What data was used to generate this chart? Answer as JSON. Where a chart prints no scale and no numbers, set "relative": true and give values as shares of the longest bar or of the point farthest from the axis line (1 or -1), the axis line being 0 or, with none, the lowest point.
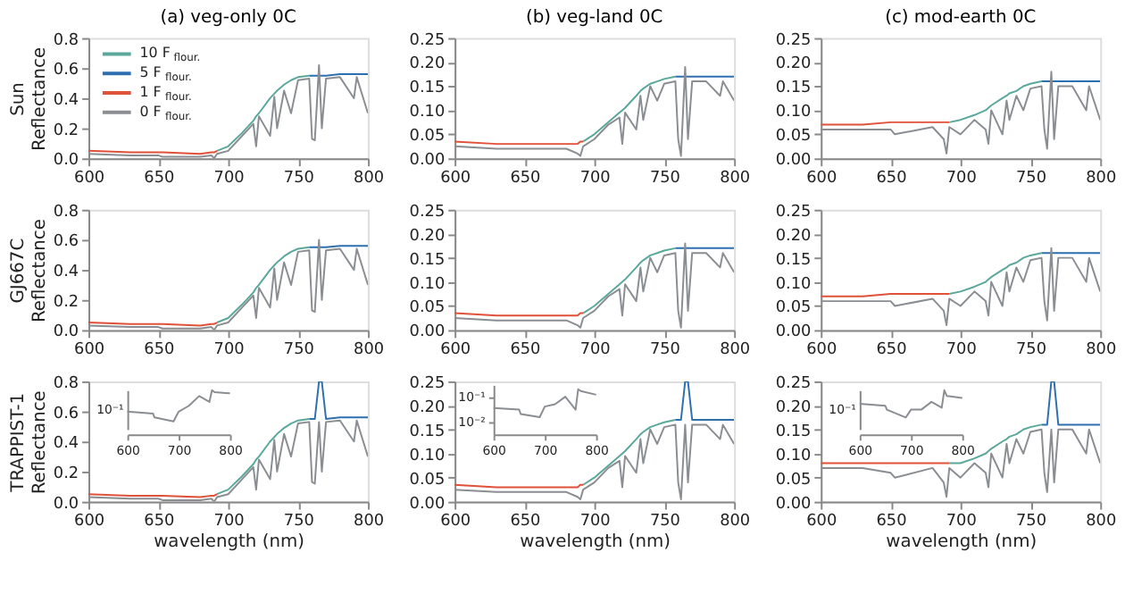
{
  "chart_data": [
    {
      "type": "line",
      "title": "(a) veg-only 0C",
      "ylabel": "Sun Reflectance",
      "legend": "top left",
      "xlim": [
        600,
        800
      ],
      "xticks": [
        600,
        650,
        700,
        750,
        800
      ],
      "ylim": [
        0,
        0.8
      ],
      "yticks": [
        {
          "value": 0,
          "label": "0.0"
        },
        0.2,
        0.4,
        0.6,
        0.8
      ],
      "x": [
        600,
        630,
        650,
        653,
        680,
        688,
        690,
        692,
        700,
        710,
        718,
        720,
        722,
        730,
        733,
        735,
        740,
        745,
        750,
        758,
        760,
        762,
        765,
        767,
        770,
        780,
        790,
        792,
        800
      ],
      "series": [
        {
          "name": "10 F$_{flour.}$",
          "color": "#5aa89a",
          "values": [
            null,
            null,
            null,
            null,
            null,
            null,
            null,
            0.05,
            0.08,
            0.17,
            0.25,
            0.28,
            0.3,
            0.4,
            0.43,
            0.45,
            0.49,
            0.52,
            0.54,
            0.55,
            null,
            null,
            null,
            null,
            null,
            null,
            null,
            null,
            null
          ]
        },
        {
          "name": "5 F$_{flour.}$",
          "color": "#2e6fb0",
          "values": [
            null,
            null,
            null,
            null,
            null,
            null,
            null,
            null,
            null,
            null,
            null,
            null,
            null,
            null,
            null,
            null,
            null,
            null,
            null,
            0.55,
            0.55,
            0.55,
            0.55,
            0.55,
            0.55,
            0.56,
            0.56,
            0.56,
            0.56
          ]
        },
        {
          "name": "1 F$_{flour.}$",
          "color": "#e0513a",
          "values": [
            0.05,
            0.04,
            0.04,
            0.04,
            0.03,
            0.04,
            0.04,
            0.05,
            null,
            null,
            null,
            null,
            null,
            null,
            null,
            null,
            null,
            null,
            null,
            null,
            null,
            null,
            null,
            null,
            null,
            null,
            null,
            null,
            null
          ]
        },
        {
          "name": "0 F$_{flour.}$",
          "color": "#8a8d91",
          "values": [
            0.03,
            0.02,
            0.02,
            0.01,
            0.01,
            0.02,
            0,
            0.03,
            0.05,
            0.15,
            0.23,
            0.08,
            0.28,
            0.15,
            0.41,
            0.2,
            0.45,
            0.3,
            0.52,
            0.53,
            0.13,
            0.12,
            0.62,
            0.2,
            0.53,
            0.54,
            0.4,
            0.54,
            0.3
          ]
        }
      ]
    },
    {
      "type": "line",
      "title": "(b) veg-land 0C",
      "xlim": [
        600,
        800
      ],
      "xticks": [
        600,
        650,
        700,
        750,
        800
      ],
      "ylim": [
        0,
        0.25
      ],
      "yticks": [
        {
          "value": 0,
          "label": "0.00"
        },
        0.05,
        {
          "value": 0.1,
          "label": "0.10"
        },
        0.15,
        {
          "value": 0.2,
          "label": "0.20"
        },
        0.25
      ],
      "x": [
        600,
        630,
        650,
        653,
        680,
        688,
        690,
        692,
        700,
        710,
        718,
        720,
        722,
        730,
        733,
        735,
        740,
        745,
        750,
        758,
        760,
        762,
        765,
        767,
        770,
        780,
        790,
        792,
        800
      ],
      "series": [
        {
          "color": "#5aa89a",
          "values": [
            null,
            null,
            null,
            null,
            null,
            null,
            null,
            0.035,
            0.05,
            0.075,
            0.095,
            0.1,
            0.105,
            0.13,
            0.14,
            0.145,
            0.155,
            0.16,
            0.165,
            0.17,
            null,
            null,
            null,
            null,
            null,
            null,
            null,
            null,
            null
          ]
        },
        {
          "color": "#2e6fb0",
          "values": [
            null,
            null,
            null,
            null,
            null,
            null,
            null,
            null,
            null,
            null,
            null,
            null,
            null,
            null,
            null,
            null,
            null,
            null,
            null,
            0.17,
            0.17,
            0.17,
            0.17,
            0.17,
            0.17,
            0.17,
            0.17,
            0.17,
            0.17
          ]
        },
        {
          "color": "#e0513a",
          "values": [
            0.035,
            0.03,
            0.03,
            0.03,
            0.03,
            0.03,
            0.035,
            0.035,
            null,
            null,
            null,
            null,
            null,
            null,
            null,
            null,
            null,
            null,
            null,
            null,
            null,
            null,
            null,
            null,
            null,
            null,
            null,
            null,
            null
          ]
        },
        {
          "color": "#8a8d91",
          "values": [
            0.025,
            0.02,
            0.02,
            0.02,
            0.02,
            0.01,
            0.005,
            0.025,
            0.04,
            0.07,
            0.085,
            0.03,
            0.095,
            0.06,
            0.13,
            0.08,
            0.15,
            0.12,
            0.155,
            0.16,
            0.04,
            0.005,
            0.19,
            0.04,
            0.16,
            0.16,
            0.13,
            0.16,
            0.12
          ]
        }
      ]
    },
    {
      "type": "line",
      "title": "(c) mod-earth 0C",
      "xlim": [
        600,
        800
      ],
      "xticks": [
        600,
        650,
        700,
        750,
        800
      ],
      "ylim": [
        0,
        0.25
      ],
      "yticks": [
        {
          "value": 0,
          "label": "0.00"
        },
        0.05,
        {
          "value": 0.1,
          "label": "0.10"
        },
        0.15,
        {
          "value": 0.2,
          "label": "0.20"
        },
        0.25
      ],
      "x": [
        600,
        630,
        650,
        653,
        680,
        688,
        690,
        692,
        700,
        710,
        718,
        720,
        722,
        730,
        733,
        735,
        740,
        745,
        750,
        758,
        760,
        762,
        765,
        767,
        770,
        780,
        790,
        792,
        800
      ],
      "series": [
        {
          "color": "#5aa89a",
          "values": [
            null,
            null,
            null,
            null,
            null,
            null,
            null,
            0.075,
            0.08,
            0.09,
            0.1,
            0.105,
            0.11,
            0.125,
            0.13,
            0.135,
            0.14,
            0.15,
            0.155,
            0.16,
            null,
            null,
            null,
            null,
            null,
            null,
            null,
            null,
            null
          ]
        },
        {
          "color": "#2e6fb0",
          "values": [
            null,
            null,
            null,
            null,
            null,
            null,
            null,
            null,
            null,
            null,
            null,
            null,
            null,
            null,
            null,
            null,
            null,
            null,
            null,
            0.16,
            0.16,
            0.16,
            0.16,
            0.16,
            0.16,
            0.16,
            0.16,
            0.16,
            0.16
          ]
        },
        {
          "color": "#e0513a",
          "values": [
            0.07,
            0.07,
            0.075,
            0.075,
            0.075,
            0.075,
            0.075,
            0.075,
            null,
            null,
            null,
            null,
            null,
            null,
            null,
            null,
            null,
            null,
            null,
            null,
            null,
            null,
            null,
            null,
            null,
            null,
            null,
            null,
            null
          ]
        },
        {
          "color": "#8a8d91",
          "values": [
            0.06,
            0.06,
            0.06,
            0.05,
            0.065,
            0.04,
            0.01,
            0.065,
            0.05,
            0.08,
            0.06,
            0.03,
            0.1,
            0.05,
            0.12,
            0.08,
            0.13,
            0.1,
            0.145,
            0.15,
            0.06,
            0.02,
            0.18,
            0.04,
            0.15,
            0.15,
            0.1,
            0.15,
            0.08
          ]
        }
      ]
    },
    {
      "type": "line",
      "ylabel": "GJ667C Reflectance",
      "xlim": [
        600,
        800
      ],
      "xticks": [
        600,
        650,
        700,
        750,
        800
      ],
      "ylim": [
        0,
        0.8
      ],
      "yticks": [
        {
          "value": 0,
          "label": "0.0"
        },
        0.2,
        0.4,
        0.6,
        0.8
      ],
      "x": [
        600,
        630,
        650,
        653,
        680,
        688,
        690,
        692,
        700,
        710,
        718,
        720,
        722,
        730,
        733,
        735,
        740,
        745,
        750,
        758,
        760,
        762,
        765,
        767,
        770,
        780,
        790,
        792,
        800
      ],
      "series": [
        {
          "color": "#5aa89a",
          "values": [
            null,
            null,
            null,
            null,
            null,
            null,
            null,
            0.05,
            0.08,
            0.17,
            0.25,
            0.28,
            0.3,
            0.4,
            0.43,
            0.45,
            0.49,
            0.52,
            0.54,
            0.55,
            null,
            null,
            null,
            null,
            null,
            null,
            null,
            null,
            null
          ]
        },
        {
          "color": "#2e6fb0",
          "values": [
            null,
            null,
            null,
            null,
            null,
            null,
            null,
            null,
            null,
            null,
            null,
            null,
            null,
            null,
            null,
            null,
            null,
            null,
            null,
            0.55,
            0.55,
            0.55,
            0.55,
            0.55,
            0.55,
            0.56,
            0.56,
            0.56,
            0.56
          ]
        },
        {
          "color": "#e0513a",
          "values": [
            0.05,
            0.04,
            0.04,
            0.04,
            0.03,
            0.04,
            0.04,
            0.05,
            null,
            null,
            null,
            null,
            null,
            null,
            null,
            null,
            null,
            null,
            null,
            null,
            null,
            null,
            null,
            null,
            null,
            null,
            null,
            null,
            null
          ]
        },
        {
          "color": "#8a8d91",
          "values": [
            0.03,
            0.02,
            0.02,
            0.01,
            0.01,
            0.02,
            0,
            0.03,
            0.05,
            0.15,
            0.23,
            0.08,
            0.28,
            0.15,
            0.41,
            0.2,
            0.45,
            0.3,
            0.52,
            0.53,
            0.13,
            0.12,
            0.6,
            0.2,
            0.53,
            0.54,
            0.4,
            0.54,
            0.3
          ]
        }
      ]
    },
    {
      "type": "line",
      "xlim": [
        600,
        800
      ],
      "xticks": [
        600,
        650,
        700,
        750,
        800
      ],
      "ylim": [
        0,
        0.25
      ],
      "yticks": [
        {
          "value": 0,
          "label": "0.00"
        },
        0.05,
        {
          "value": 0.1,
          "label": "0.10"
        },
        0.15,
        {
          "value": 0.2,
          "label": "0.20"
        },
        0.25
      ],
      "x": [
        600,
        630,
        650,
        653,
        680,
        688,
        690,
        692,
        700,
        710,
        718,
        720,
        722,
        730,
        733,
        735,
        740,
        745,
        750,
        758,
        760,
        762,
        765,
        767,
        770,
        780,
        790,
        792,
        800
      ],
      "series": [
        {
          "color": "#5aa89a",
          "values": [
            null,
            null,
            null,
            null,
            null,
            null,
            null,
            0.035,
            0.05,
            0.075,
            0.095,
            0.1,
            0.105,
            0.13,
            0.14,
            0.145,
            0.155,
            0.16,
            0.165,
            0.17,
            null,
            null,
            null,
            null,
            null,
            null,
            null,
            null,
            null
          ]
        },
        {
          "color": "#2e6fb0",
          "values": [
            null,
            null,
            null,
            null,
            null,
            null,
            null,
            null,
            null,
            null,
            null,
            null,
            null,
            null,
            null,
            null,
            null,
            null,
            null,
            0.17,
            0.17,
            0.17,
            0.17,
            0.17,
            0.17,
            0.17,
            0.17,
            0.17,
            0.17
          ]
        },
        {
          "color": "#e0513a",
          "values": [
            0.035,
            0.03,
            0.03,
            0.03,
            0.03,
            0.03,
            0.035,
            0.035,
            null,
            null,
            null,
            null,
            null,
            null,
            null,
            null,
            null,
            null,
            null,
            null,
            null,
            null,
            null,
            null,
            null,
            null,
            null,
            null,
            null
          ]
        },
        {
          "color": "#8a8d91",
          "values": [
            0.025,
            0.02,
            0.02,
            0.02,
            0.02,
            0.01,
            0.005,
            0.025,
            0.04,
            0.07,
            0.085,
            0.03,
            0.095,
            0.06,
            0.13,
            0.08,
            0.15,
            0.12,
            0.155,
            0.16,
            0.04,
            0.005,
            0.18,
            0.04,
            0.16,
            0.16,
            0.13,
            0.16,
            0.12
          ]
        }
      ]
    },
    {
      "type": "line",
      "xlim": [
        600,
        800
      ],
      "xticks": [
        600,
        650,
        700,
        750,
        800
      ],
      "ylim": [
        0,
        0.25
      ],
      "yticks": [
        {
          "value": 0,
          "label": "0.00"
        },
        0.05,
        {
          "value": 0.1,
          "label": "0.10"
        },
        0.15,
        {
          "value": 0.2,
          "label": "0.20"
        },
        0.25
      ],
      "x": [
        600,
        630,
        650,
        653,
        680,
        688,
        690,
        692,
        700,
        710,
        718,
        720,
        722,
        730,
        733,
        735,
        740,
        745,
        750,
        758,
        760,
        762,
        765,
        767,
        770,
        780,
        790,
        792,
        800
      ],
      "series": [
        {
          "color": "#5aa89a",
          "values": [
            null,
            null,
            null,
            null,
            null,
            null,
            null,
            0.075,
            0.08,
            0.09,
            0.1,
            0.105,
            0.11,
            0.125,
            0.13,
            0.135,
            0.14,
            0.15,
            0.155,
            0.16,
            null,
            null,
            null,
            null,
            null,
            null,
            null,
            null,
            null
          ]
        },
        {
          "color": "#2e6fb0",
          "values": [
            null,
            null,
            null,
            null,
            null,
            null,
            null,
            null,
            null,
            null,
            null,
            null,
            null,
            null,
            null,
            null,
            null,
            null,
            null,
            0.16,
            0.16,
            0.16,
            0.16,
            0.16,
            0.16,
            0.16,
            0.16,
            0.16,
            0.16
          ]
        },
        {
          "color": "#e0513a",
          "values": [
            0.07,
            0.07,
            0.075,
            0.075,
            0.075,
            0.075,
            0.075,
            0.075,
            null,
            null,
            null,
            null,
            null,
            null,
            null,
            null,
            null,
            null,
            null,
            null,
            null,
            null,
            null,
            null,
            null,
            null,
            null,
            null,
            null
          ]
        },
        {
          "color": "#8a8d91",
          "values": [
            0.06,
            0.06,
            0.06,
            0.05,
            0.065,
            0.04,
            0.01,
            0.065,
            0.05,
            0.08,
            0.06,
            0.03,
            0.1,
            0.05,
            0.12,
            0.08,
            0.13,
            0.1,
            0.145,
            0.15,
            0.06,
            0.02,
            0.17,
            0.04,
            0.15,
            0.15,
            0.1,
            0.15,
            0.08
          ]
        }
      ]
    },
    {
      "type": "line",
      "ylabel": "TRAPPIST-1 Reflectance",
      "xlabel": "wavelength (nm)",
      "xlim": [
        600,
        800
      ],
      "xticks": [
        600,
        650,
        700,
        750,
        800
      ],
      "ylim": [
        0,
        0.8
      ],
      "yticks": [
        {
          "value": 0,
          "label": "0.0"
        },
        0.2,
        0.4,
        0.6,
        0.8
      ],
      "x": [
        600,
        630,
        650,
        653,
        680,
        688,
        690,
        692,
        700,
        710,
        718,
        720,
        722,
        730,
        733,
        735,
        740,
        745,
        750,
        758,
        760,
        762,
        765,
        767,
        770,
        780,
        790,
        792,
        800
      ],
      "series": [
        {
          "color": "#5aa89a",
          "values": [
            null,
            null,
            null,
            null,
            null,
            null,
            null,
            0.05,
            0.08,
            0.17,
            0.25,
            0.28,
            0.3,
            0.4,
            0.43,
            0.45,
            0.49,
            0.52,
            0.54,
            0.55,
            null,
            null,
            null,
            null,
            null,
            null,
            null,
            null,
            null
          ]
        },
        {
          "color": "#2e6fb0",
          "values": [
            null,
            null,
            null,
            null,
            null,
            null,
            null,
            null,
            null,
            null,
            null,
            null,
            null,
            null,
            null,
            null,
            null,
            null,
            null,
            0.55,
            0.55,
            0.55,
            0.8,
            0.8,
            0.55,
            0.56,
            0.56,
            0.56,
            0.56
          ]
        },
        {
          "color": "#e0513a",
          "values": [
            0.05,
            0.04,
            0.04,
            0.04,
            0.03,
            0.04,
            0.04,
            0.05,
            null,
            null,
            null,
            null,
            null,
            null,
            null,
            null,
            null,
            null,
            null,
            null,
            null,
            null,
            null,
            null,
            null,
            null,
            null,
            null,
            null
          ]
        },
        {
          "color": "#8a8d91",
          "values": [
            0.03,
            0.02,
            0.02,
            0.01,
            0.01,
            0.02,
            0,
            0.03,
            0.05,
            0.15,
            0.23,
            0.08,
            0.28,
            0.15,
            0.41,
            0.2,
            0.45,
            0.3,
            0.52,
            0.53,
            0.13,
            0.12,
            0.53,
            0.2,
            0.53,
            0.54,
            0.4,
            0.54,
            0.3
          ]
        }
      ]
    },
    {
      "type": "line",
      "xlabel": "wavelength (nm)",
      "xlim": [
        600,
        800
      ],
      "xticks": [
        600,
        650,
        700,
        750,
        800
      ],
      "ylim": [
        0,
        0.25
      ],
      "yticks": [
        {
          "value": 0,
          "label": "0.00"
        },
        0.05,
        {
          "value": 0.1,
          "label": "0.10"
        },
        0.15,
        {
          "value": 0.2,
          "label": "0.20"
        },
        0.25
      ],
      "x": [
        600,
        630,
        650,
        653,
        680,
        688,
        690,
        692,
        700,
        710,
        718,
        720,
        722,
        730,
        733,
        735,
        740,
        745,
        750,
        758,
        760,
        762,
        765,
        767,
        770,
        780,
        790,
        792,
        800
      ],
      "series": [
        {
          "color": "#5aa89a",
          "values": [
            null,
            null,
            null,
            null,
            null,
            null,
            null,
            0.035,
            0.05,
            0.075,
            0.095,
            0.1,
            0.105,
            0.13,
            0.14,
            0.145,
            0.155,
            0.16,
            0.165,
            0.17,
            null,
            null,
            null,
            null,
            null,
            null,
            null,
            null,
            null
          ]
        },
        {
          "color": "#2e6fb0",
          "values": [
            null,
            null,
            null,
            null,
            null,
            null,
            null,
            null,
            null,
            null,
            null,
            null,
            null,
            null,
            null,
            null,
            null,
            null,
            null,
            0.17,
            0.17,
            0.17,
            0.25,
            0.25,
            0.17,
            0.17,
            0.17,
            0.17,
            0.17
          ]
        },
        {
          "color": "#e0513a",
          "values": [
            0.035,
            0.03,
            0.03,
            0.03,
            0.03,
            0.03,
            0.035,
            0.035,
            null,
            null,
            null,
            null,
            null,
            null,
            null,
            null,
            null,
            null,
            null,
            null,
            null,
            null,
            null,
            null,
            null,
            null,
            null,
            null,
            null
          ]
        },
        {
          "color": "#8a8d91",
          "values": [
            0.025,
            0.02,
            0.02,
            0.02,
            0.02,
            0.01,
            0.005,
            0.025,
            0.04,
            0.07,
            0.085,
            0.03,
            0.095,
            0.06,
            0.13,
            0.08,
            0.15,
            0.12,
            0.155,
            0.16,
            0.04,
            0.005,
            0.16,
            0.04,
            0.16,
            0.16,
            0.13,
            0.16,
            0.12
          ]
        }
      ]
    },
    {
      "type": "line",
      "xlabel": "wavelength (nm)",
      "xlim": [
        600,
        800
      ],
      "xticks": [
        600,
        650,
        700,
        750,
        800
      ],
      "ylim": [
        0,
        0.25
      ],
      "yticks": [
        {
          "value": 0,
          "label": "0.00"
        },
        0.05,
        {
          "value": 0.1,
          "label": "0.10"
        },
        0.15,
        {
          "value": 0.2,
          "label": "0.20"
        },
        0.25
      ],
      "x": [
        600,
        630,
        650,
        653,
        680,
        688,
        690,
        692,
        700,
        710,
        718,
        720,
        722,
        730,
        733,
        735,
        740,
        745,
        750,
        758,
        760,
        762,
        765,
        767,
        770,
        780,
        790,
        792,
        800
      ],
      "series": [
        {
          "color": "#5aa89a",
          "values": [
            null,
            null,
            null,
            null,
            null,
            null,
            null,
            0.08,
            0.08,
            0.09,
            0.1,
            0.105,
            0.11,
            0.125,
            0.13,
            0.135,
            0.14,
            0.15,
            0.155,
            0.16,
            null,
            null,
            null,
            null,
            null,
            null,
            null,
            null,
            null
          ]
        },
        {
          "color": "#2e6fb0",
          "values": [
            null,
            null,
            null,
            null,
            null,
            null,
            null,
            null,
            null,
            null,
            null,
            null,
            null,
            null,
            null,
            null,
            null,
            null,
            null,
            0.16,
            0.16,
            0.16,
            0.25,
            0.25,
            0.16,
            0.16,
            0.16,
            0.16,
            0.16
          ]
        },
        {
          "color": "#e0513a",
          "values": [
            0.08,
            0.08,
            0.08,
            0.08,
            0.08,
            0.08,
            0.08,
            0.08,
            null,
            null,
            null,
            null,
            null,
            null,
            null,
            null,
            null,
            null,
            null,
            null,
            null,
            null,
            null,
            null,
            null,
            null,
            null,
            null,
            null
          ]
        },
        {
          "color": "#8a8d91",
          "values": [
            0.07,
            0.07,
            0.06,
            0.05,
            0.07,
            0.04,
            0.01,
            0.07,
            0.05,
            0.08,
            0.06,
            0.03,
            0.1,
            0.05,
            0.12,
            0.08,
            0.13,
            0.1,
            0.145,
            0.15,
            0.06,
            0.02,
            0.15,
            0.04,
            0.15,
            0.15,
            0.1,
            0.15,
            0.08
          ]
        }
      ]
    },
    {
      "type": "line",
      "relative": true,
      "annotations": [
        "10⁻¹"
      ],
      "xlim": [
        600,
        800
      ],
      "xticks": [
        600,
        700,
        800
      ],
      "x": [
        600,
        650,
        653,
        690,
        700,
        720,
        740,
        760,
        765,
        770,
        800
      ],
      "series": [
        {
          "color": "#8a8d91",
          "values": [
            0.45,
            0.4,
            0.3,
            0.2,
            0.45,
            0.6,
            0.85,
            0.7,
            1,
            0.95,
            0.92
          ]
        }
      ]
    },
    {
      "type": "line",
      "log": "y",
      "xlim": [
        600,
        800
      ],
      "xticks": [
        600,
        700,
        800
      ],
      "ylim": [
        0.003,
        0.3
      ],
      "yticks": [
        {
          "value": 0.1,
          "label": "10⁻¹"
        },
        {
          "value": 0.01,
          "label": "10⁻²"
        }
      ],
      "x": [
        600,
        650,
        653,
        690,
        700,
        720,
        740,
        760,
        765,
        770,
        800
      ],
      "series": [
        {
          "color": "#8a8d91",
          "values": [
            0.035,
            0.03,
            0.02,
            0.015,
            0.04,
            0.05,
            0.1,
            0.03,
            0.2,
            0.17,
            0.12
          ]
        }
      ]
    },
    {
      "type": "line",
      "relative": true,
      "annotations": [
        "10⁻¹"
      ],
      "xlim": [
        600,
        800
      ],
      "xticks": [
        600,
        700,
        800
      ],
      "x": [
        600,
        650,
        653,
        690,
        700,
        720,
        740,
        760,
        765,
        770,
        800
      ],
      "series": [
        {
          "color": "#8a8d91",
          "values": [
            0.65,
            0.6,
            0.5,
            0.3,
            0.5,
            0.5,
            0.7,
            0.55,
            1,
            0.85,
            0.8
          ]
        }
      ]
    }
  ]
}
